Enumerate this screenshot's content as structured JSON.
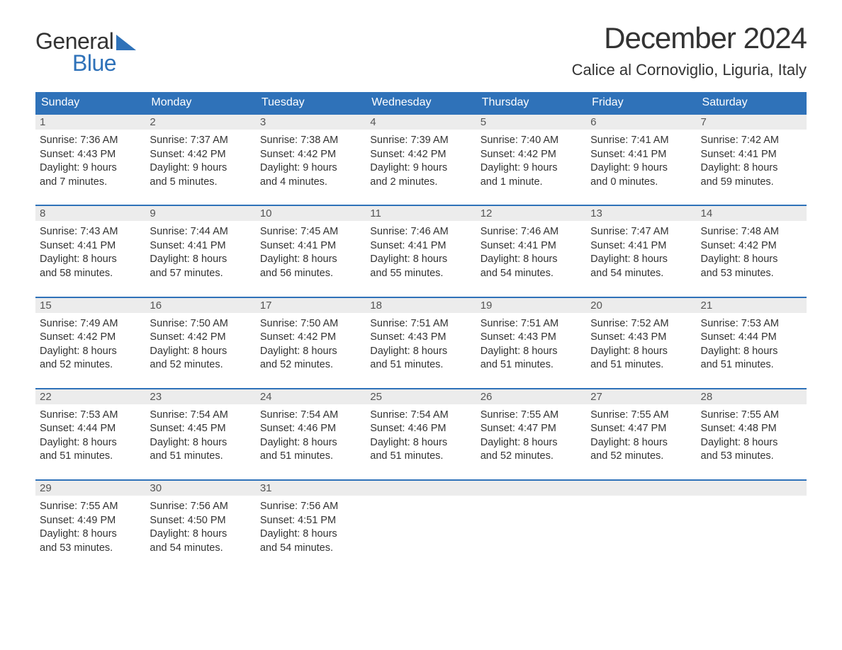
{
  "logo": {
    "word1": "General",
    "word2": "Blue"
  },
  "title": "December 2024",
  "location": "Calice al Cornoviglio, Liguria, Italy",
  "colors": {
    "brand_blue": "#2f72b9",
    "text": "#333333",
    "daynum_bg": "#ececec",
    "background": "#ffffff"
  },
  "calendar": {
    "type": "table",
    "columns": [
      "Sunday",
      "Monday",
      "Tuesday",
      "Wednesday",
      "Thursday",
      "Friday",
      "Saturday"
    ],
    "fontsize_header": 16,
    "fontsize_body": 14,
    "weeks": [
      [
        {
          "n": "1",
          "sunrise": "Sunrise: 7:36 AM",
          "sunset": "Sunset: 4:43 PM",
          "day1": "Daylight: 9 hours",
          "day2": "and 7 minutes."
        },
        {
          "n": "2",
          "sunrise": "Sunrise: 7:37 AM",
          "sunset": "Sunset: 4:42 PM",
          "day1": "Daylight: 9 hours",
          "day2": "and 5 minutes."
        },
        {
          "n": "3",
          "sunrise": "Sunrise: 7:38 AM",
          "sunset": "Sunset: 4:42 PM",
          "day1": "Daylight: 9 hours",
          "day2": "and 4 minutes."
        },
        {
          "n": "4",
          "sunrise": "Sunrise: 7:39 AM",
          "sunset": "Sunset: 4:42 PM",
          "day1": "Daylight: 9 hours",
          "day2": "and 2 minutes."
        },
        {
          "n": "5",
          "sunrise": "Sunrise: 7:40 AM",
          "sunset": "Sunset: 4:42 PM",
          "day1": "Daylight: 9 hours",
          "day2": "and 1 minute."
        },
        {
          "n": "6",
          "sunrise": "Sunrise: 7:41 AM",
          "sunset": "Sunset: 4:41 PM",
          "day1": "Daylight: 9 hours",
          "day2": "and 0 minutes."
        },
        {
          "n": "7",
          "sunrise": "Sunrise: 7:42 AM",
          "sunset": "Sunset: 4:41 PM",
          "day1": "Daylight: 8 hours",
          "day2": "and 59 minutes."
        }
      ],
      [
        {
          "n": "8",
          "sunrise": "Sunrise: 7:43 AM",
          "sunset": "Sunset: 4:41 PM",
          "day1": "Daylight: 8 hours",
          "day2": "and 58 minutes."
        },
        {
          "n": "9",
          "sunrise": "Sunrise: 7:44 AM",
          "sunset": "Sunset: 4:41 PM",
          "day1": "Daylight: 8 hours",
          "day2": "and 57 minutes."
        },
        {
          "n": "10",
          "sunrise": "Sunrise: 7:45 AM",
          "sunset": "Sunset: 4:41 PM",
          "day1": "Daylight: 8 hours",
          "day2": "and 56 minutes."
        },
        {
          "n": "11",
          "sunrise": "Sunrise: 7:46 AM",
          "sunset": "Sunset: 4:41 PM",
          "day1": "Daylight: 8 hours",
          "day2": "and 55 minutes."
        },
        {
          "n": "12",
          "sunrise": "Sunrise: 7:46 AM",
          "sunset": "Sunset: 4:41 PM",
          "day1": "Daylight: 8 hours",
          "day2": "and 54 minutes."
        },
        {
          "n": "13",
          "sunrise": "Sunrise: 7:47 AM",
          "sunset": "Sunset: 4:41 PM",
          "day1": "Daylight: 8 hours",
          "day2": "and 54 minutes."
        },
        {
          "n": "14",
          "sunrise": "Sunrise: 7:48 AM",
          "sunset": "Sunset: 4:42 PM",
          "day1": "Daylight: 8 hours",
          "day2": "and 53 minutes."
        }
      ],
      [
        {
          "n": "15",
          "sunrise": "Sunrise: 7:49 AM",
          "sunset": "Sunset: 4:42 PM",
          "day1": "Daylight: 8 hours",
          "day2": "and 52 minutes."
        },
        {
          "n": "16",
          "sunrise": "Sunrise: 7:50 AM",
          "sunset": "Sunset: 4:42 PM",
          "day1": "Daylight: 8 hours",
          "day2": "and 52 minutes."
        },
        {
          "n": "17",
          "sunrise": "Sunrise: 7:50 AM",
          "sunset": "Sunset: 4:42 PM",
          "day1": "Daylight: 8 hours",
          "day2": "and 52 minutes."
        },
        {
          "n": "18",
          "sunrise": "Sunrise: 7:51 AM",
          "sunset": "Sunset: 4:43 PM",
          "day1": "Daylight: 8 hours",
          "day2": "and 51 minutes."
        },
        {
          "n": "19",
          "sunrise": "Sunrise: 7:51 AM",
          "sunset": "Sunset: 4:43 PM",
          "day1": "Daylight: 8 hours",
          "day2": "and 51 minutes."
        },
        {
          "n": "20",
          "sunrise": "Sunrise: 7:52 AM",
          "sunset": "Sunset: 4:43 PM",
          "day1": "Daylight: 8 hours",
          "day2": "and 51 minutes."
        },
        {
          "n": "21",
          "sunrise": "Sunrise: 7:53 AM",
          "sunset": "Sunset: 4:44 PM",
          "day1": "Daylight: 8 hours",
          "day2": "and 51 minutes."
        }
      ],
      [
        {
          "n": "22",
          "sunrise": "Sunrise: 7:53 AM",
          "sunset": "Sunset: 4:44 PM",
          "day1": "Daylight: 8 hours",
          "day2": "and 51 minutes."
        },
        {
          "n": "23",
          "sunrise": "Sunrise: 7:54 AM",
          "sunset": "Sunset: 4:45 PM",
          "day1": "Daylight: 8 hours",
          "day2": "and 51 minutes."
        },
        {
          "n": "24",
          "sunrise": "Sunrise: 7:54 AM",
          "sunset": "Sunset: 4:46 PM",
          "day1": "Daylight: 8 hours",
          "day2": "and 51 minutes."
        },
        {
          "n": "25",
          "sunrise": "Sunrise: 7:54 AM",
          "sunset": "Sunset: 4:46 PM",
          "day1": "Daylight: 8 hours",
          "day2": "and 51 minutes."
        },
        {
          "n": "26",
          "sunrise": "Sunrise: 7:55 AM",
          "sunset": "Sunset: 4:47 PM",
          "day1": "Daylight: 8 hours",
          "day2": "and 52 minutes."
        },
        {
          "n": "27",
          "sunrise": "Sunrise: 7:55 AM",
          "sunset": "Sunset: 4:47 PM",
          "day1": "Daylight: 8 hours",
          "day2": "and 52 minutes."
        },
        {
          "n": "28",
          "sunrise": "Sunrise: 7:55 AM",
          "sunset": "Sunset: 4:48 PM",
          "day1": "Daylight: 8 hours",
          "day2": "and 53 minutes."
        }
      ],
      [
        {
          "n": "29",
          "sunrise": "Sunrise: 7:55 AM",
          "sunset": "Sunset: 4:49 PM",
          "day1": "Daylight: 8 hours",
          "day2": "and 53 minutes."
        },
        {
          "n": "30",
          "sunrise": "Sunrise: 7:56 AM",
          "sunset": "Sunset: 4:50 PM",
          "day1": "Daylight: 8 hours",
          "day2": "and 54 minutes."
        },
        {
          "n": "31",
          "sunrise": "Sunrise: 7:56 AM",
          "sunset": "Sunset: 4:51 PM",
          "day1": "Daylight: 8 hours",
          "day2": "and 54 minutes."
        },
        null,
        null,
        null,
        null
      ]
    ]
  }
}
